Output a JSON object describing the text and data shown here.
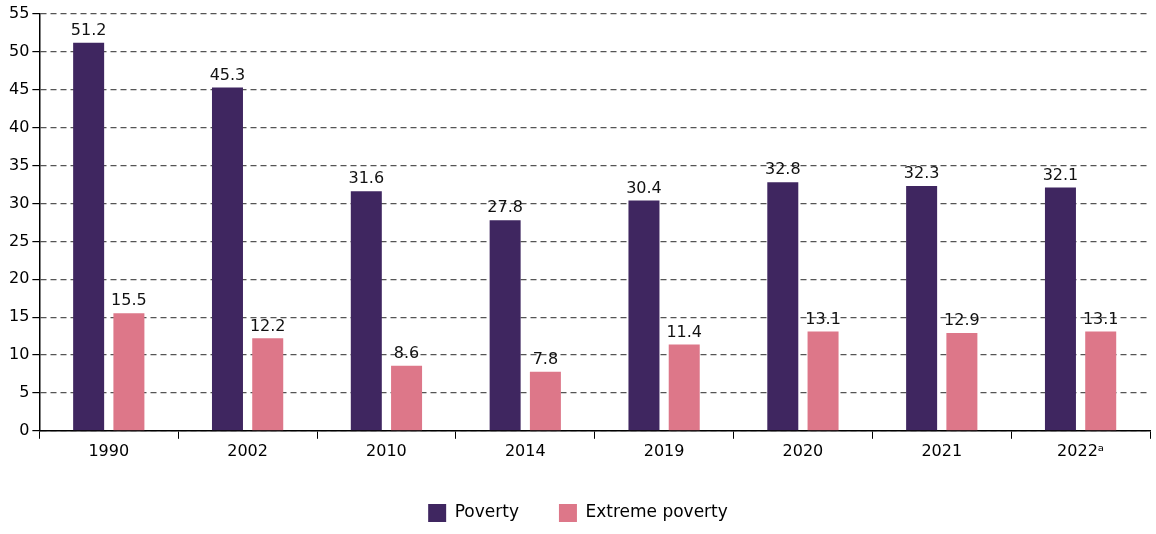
{
  "chart_data": {
    "type": "bar",
    "categories": [
      "1990",
      "2002",
      "2010",
      "2014",
      "2019",
      "2020",
      "2021",
      "2022ᵃ"
    ],
    "series": [
      {
        "name": "Poverty",
        "color": "#3f2660",
        "values": [
          51.2,
          45.3,
          31.6,
          27.8,
          30.4,
          32.8,
          32.3,
          32.1
        ]
      },
      {
        "name": "Extreme poverty",
        "color": "#dd7789",
        "values": [
          15.5,
          12.2,
          8.6,
          7.8,
          11.4,
          13.1,
          12.9,
          13.1
        ]
      }
    ],
    "ylim": [
      0,
      55
    ],
    "yticks": [
      0,
      5,
      10,
      15,
      20,
      25,
      30,
      35,
      40,
      45,
      50,
      55
    ],
    "grid": "y",
    "legend": "bottom",
    "data_labels": true
  }
}
